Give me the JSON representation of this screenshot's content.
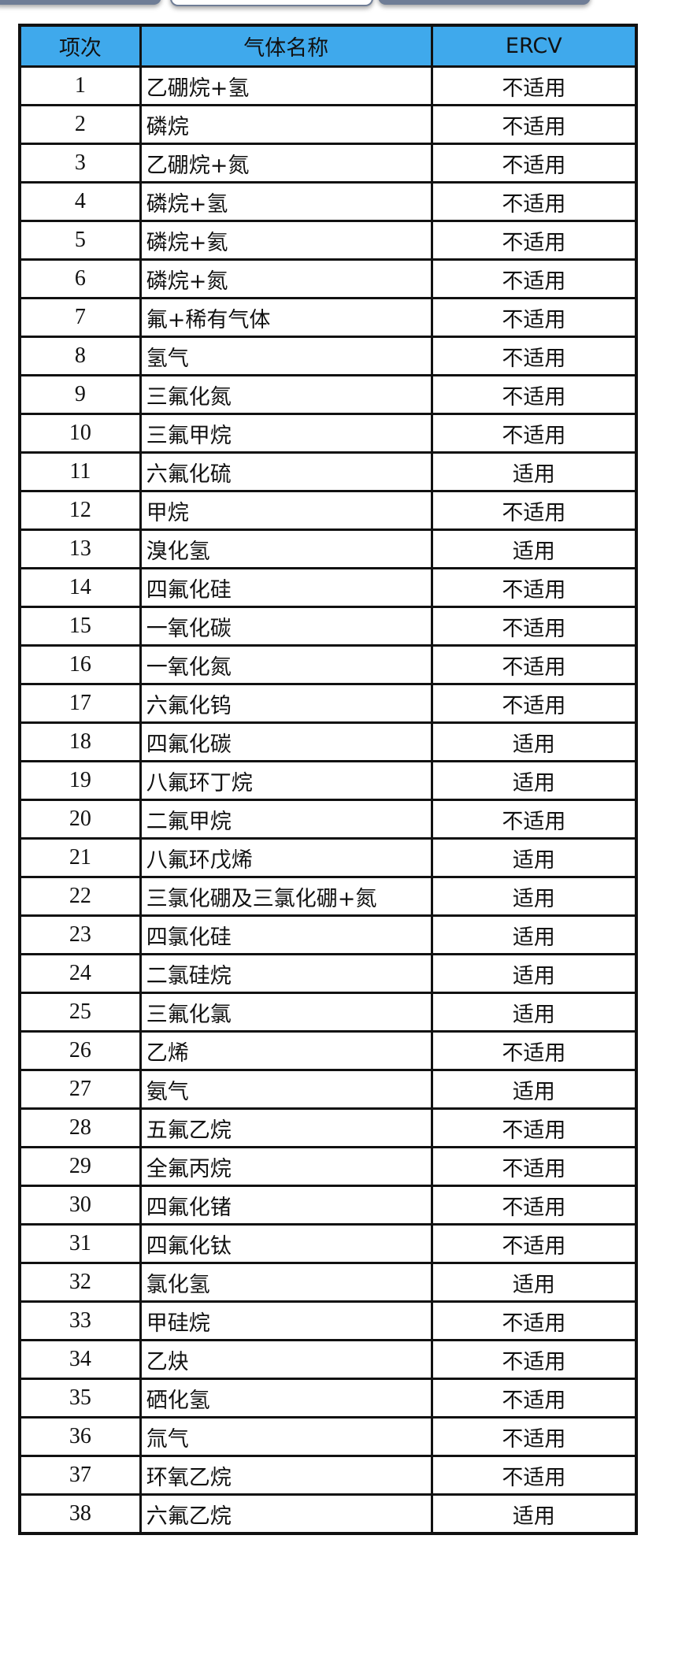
{
  "table": {
    "headers": [
      "项次",
      "气体名称",
      "ERCV"
    ],
    "rows": [
      [
        "1",
        "乙硼烷+氢",
        "不适用"
      ],
      [
        "2",
        "磷烷",
        "不适用"
      ],
      [
        "3",
        "乙硼烷+氮",
        "不适用"
      ],
      [
        "4",
        "磷烷+氢",
        "不适用"
      ],
      [
        "5",
        "磷烷+氦",
        "不适用"
      ],
      [
        "6",
        "磷烷+氮",
        "不适用"
      ],
      [
        "7",
        "氟+稀有气体",
        "不适用"
      ],
      [
        "8",
        "氢气",
        "不适用"
      ],
      [
        "9",
        "三氟化氮",
        "不适用"
      ],
      [
        "10",
        "三氟甲烷",
        "不适用"
      ],
      [
        "11",
        "六氟化硫",
        "适用"
      ],
      [
        "12",
        "甲烷",
        "不适用"
      ],
      [
        "13",
        "溴化氢",
        "适用"
      ],
      [
        "14",
        "四氟化硅",
        "不适用"
      ],
      [
        "15",
        "一氧化碳",
        "不适用"
      ],
      [
        "16",
        "一氧化氮",
        "不适用"
      ],
      [
        "17",
        "六氟化钨",
        "不适用"
      ],
      [
        "18",
        "四氟化碳",
        "适用"
      ],
      [
        "19",
        "八氟环丁烷",
        "适用"
      ],
      [
        "20",
        "二氟甲烷",
        "不适用"
      ],
      [
        "21",
        "八氟环戊烯",
        "适用"
      ],
      [
        "22",
        "三氯化硼及三氯化硼+氮",
        "适用"
      ],
      [
        "23",
        "四氯化硅",
        "适用"
      ],
      [
        "24",
        "二氯硅烷",
        "适用"
      ],
      [
        "25",
        "三氟化氯",
        "适用"
      ],
      [
        "26",
        "乙烯",
        "不适用"
      ],
      [
        "27",
        "氨气",
        "适用"
      ],
      [
        "28",
        "五氟乙烷",
        "不适用"
      ],
      [
        "29",
        "全氟丙烷",
        "不适用"
      ],
      [
        "30",
        "四氟化锗",
        "不适用"
      ],
      [
        "31",
        "四氟化钛",
        "不适用"
      ],
      [
        "32",
        "氯化氢",
        "适用"
      ],
      [
        "33",
        "甲硅烷",
        "不适用"
      ],
      [
        "34",
        "乙炔",
        "不适用"
      ],
      [
        "35",
        "硒化氢",
        "不适用"
      ],
      [
        "36",
        "氚气",
        "不适用"
      ],
      [
        "37",
        "环氧乙烷",
        "不适用"
      ],
      [
        "38",
        "六氟乙烷",
        "适用"
      ]
    ]
  },
  "colors": {
    "header_bg": "#3fa9ec",
    "border": "#111111"
  }
}
